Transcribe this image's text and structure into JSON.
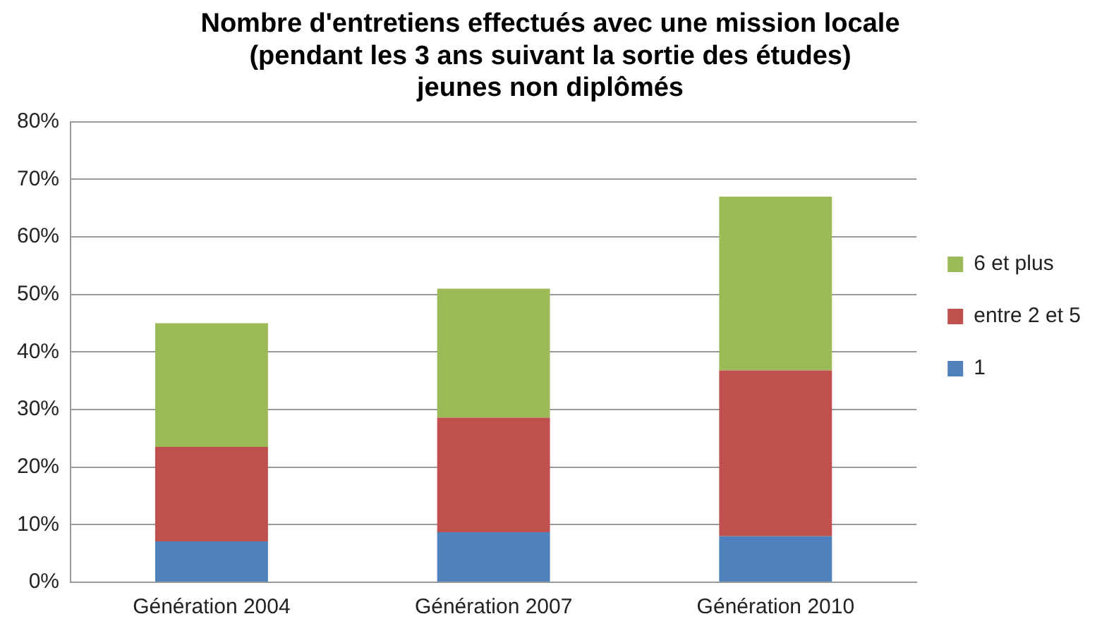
{
  "chart_data": {
    "type": "bar",
    "title": [
      "Nombre d'entretiens effectués avec une mission locale",
      "(pendant les 3 ans suivant la sortie des études)",
      "jeunes non diplômés"
    ],
    "categories": [
      "Génération 2004",
      "Génération 2007",
      "Génération 2010"
    ],
    "stacked": true,
    "series": [
      {
        "name": "1",
        "color": "#4f81bd",
        "values": [
          7.1,
          8.7,
          8.0
        ]
      },
      {
        "name": "entre 2 et 5",
        "color": "#c0504d",
        "values": [
          16.4,
          19.9,
          28.8
        ]
      },
      {
        "name": "6 et plus",
        "color": "#9bbb59",
        "values": [
          21.5,
          22.4,
          30.2
        ]
      }
    ],
    "ylim": [
      0,
      80
    ],
    "yticks": [
      {
        "value": 0,
        "label": "0%"
      },
      {
        "value": 10,
        "label": "10%"
      },
      {
        "value": 20,
        "label": "20%"
      },
      {
        "value": 30,
        "label": "30%"
      },
      {
        "value": 40,
        "label": "40%"
      },
      {
        "value": 50,
        "label": "50%"
      },
      {
        "value": 60,
        "label": "60%"
      },
      {
        "value": 70,
        "label": "70%"
      },
      {
        "value": 80,
        "label": "80%"
      }
    ],
    "grid": "y",
    "legend": "right"
  }
}
